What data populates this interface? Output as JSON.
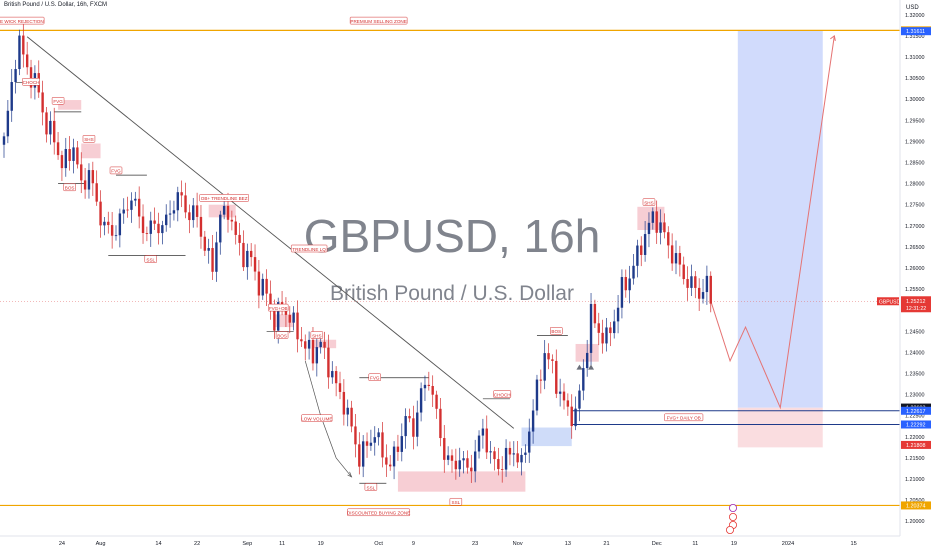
{
  "header": {
    "symbol_title": "British Pound / U.S. Dollar, 16h, FXCM"
  },
  "watermark": {
    "title": "GBPUSD, 16h",
    "subtitle": "British Pound / U.S. Dollar"
  },
  "price_axis": {
    "currency": "USD",
    "ticks": [
      "1.32000",
      "1.31500",
      "1.31000",
      "1.30500",
      "1.30000",
      "1.29500",
      "1.29000",
      "1.28500",
      "1.28000",
      "1.27500",
      "1.27000",
      "1.26500",
      "1.26000",
      "1.25500",
      "1.25000",
      "1.24500",
      "1.24000",
      "1.23500",
      "1.23000",
      "1.22500",
      "1.22000",
      "1.21500",
      "1.21000",
      "1.20500",
      "1.20000"
    ],
    "tags": [
      {
        "label": "1.31631",
        "value": 1.31631,
        "color": "#f0a500"
      },
      {
        "label": "1.31611",
        "value": 1.31611,
        "color": "#2962ff"
      },
      {
        "label": "1.22693",
        "value": 1.22693,
        "color": "#131722"
      },
      {
        "label": "1.22617",
        "value": 1.22617,
        "color": "#2962ff"
      },
      {
        "label": "1.22292",
        "value": 1.22292,
        "color": "#2962ff"
      },
      {
        "label": "1.21808",
        "value": 1.21808,
        "color": "#e53935"
      },
      {
        "label": "1.20374",
        "value": 1.20374,
        "color": "#f0a500"
      }
    ],
    "current": {
      "symbol": "GBPUSD",
      "price": "1.25212",
      "countdown": "12:31:22",
      "value": 1.25212,
      "color": "#e53935"
    }
  },
  "time_axis": {
    "ticks": [
      {
        "label": "24",
        "i": 15
      },
      {
        "label": "Aug",
        "i": 25
      },
      {
        "label": "14",
        "i": 40
      },
      {
        "label": "22",
        "i": 50
      },
      {
        "label": "Sep",
        "i": 63
      },
      {
        "label": "11",
        "i": 72
      },
      {
        "label": "19",
        "i": 82
      },
      {
        "label": "Oct",
        "i": 97
      },
      {
        "label": "9",
        "i": 106
      },
      {
        "label": "23",
        "i": 122
      },
      {
        "label": "Nov",
        "i": 133
      },
      {
        "label": "13",
        "i": 146
      },
      {
        "label": "21",
        "i": 156
      },
      {
        "label": "Dec",
        "i": 169
      },
      {
        "label": "11",
        "i": 179
      },
      {
        "label": "19",
        "i": 189
      },
      {
        "label": "2024",
        "i": 203
      },
      {
        "label": "15",
        "i": 220
      }
    ]
  },
  "chart_data": {
    "type": "candlestick",
    "title": "GBPUSD, 16h",
    "subtitle": "British Pound / U.S. Dollar",
    "ylim": [
      1.1965,
      1.3235
    ],
    "x_index_range": [
      0,
      232
    ],
    "candle_count": 184,
    "bull_color": "#1e3a8a",
    "bear_color": "#d32f2f",
    "close_anchors": [
      [
        0,
        1.29
      ],
      [
        3,
        1.31
      ],
      [
        4,
        1.313
      ],
      [
        7,
        1.305
      ],
      [
        9,
        1.302
      ],
      [
        11,
        1.293
      ],
      [
        13,
        1.291
      ],
      [
        15,
        1.284
      ],
      [
        18,
        1.289
      ],
      [
        20,
        1.279
      ],
      [
        22,
        1.283
      ],
      [
        24,
        1.275
      ],
      [
        26,
        1.27
      ],
      [
        28,
        1.268
      ],
      [
        31,
        1.273
      ],
      [
        33,
        1.277
      ],
      [
        35,
        1.272
      ],
      [
        37,
        1.268
      ],
      [
        39,
        1.271
      ],
      [
        41,
        1.269
      ],
      [
        43,
        1.274
      ],
      [
        46,
        1.277
      ],
      [
        48,
        1.272
      ],
      [
        50,
        1.273
      ],
      [
        52,
        1.264
      ],
      [
        54,
        1.261
      ],
      [
        56,
        1.272
      ],
      [
        58,
        1.274
      ],
      [
        60,
        1.267
      ],
      [
        62,
        1.263
      ],
      [
        64,
        1.262
      ],
      [
        66,
        1.256
      ],
      [
        68,
        1.254
      ],
      [
        70,
        1.247
      ],
      [
        72,
        1.251
      ],
      [
        74,
        1.248
      ],
      [
        76,
        1.245
      ],
      [
        78,
        1.241
      ],
      [
        80,
        1.24
      ],
      [
        82,
        1.242
      ],
      [
        84,
        1.237
      ],
      [
        86,
        1.232
      ],
      [
        88,
        1.228
      ],
      [
        90,
        1.222
      ],
      [
        92,
        1.215
      ],
      [
        94,
        1.218
      ],
      [
        96,
        1.221
      ],
      [
        98,
        1.216
      ],
      [
        100,
        1.213
      ],
      [
        102,
        1.218
      ],
      [
        104,
        1.224
      ],
      [
        106,
        1.222
      ],
      [
        108,
        1.23
      ],
      [
        110,
        1.234
      ],
      [
        112,
        1.225
      ],
      [
        114,
        1.216
      ],
      [
        116,
        1.213
      ],
      [
        118,
        1.215
      ],
      [
        120,
        1.212
      ],
      [
        122,
        1.216
      ],
      [
        124,
        1.222
      ],
      [
        126,
        1.215
      ],
      [
        128,
        1.213
      ],
      [
        130,
        1.215
      ],
      [
        132,
        1.217
      ],
      [
        134,
        1.213
      ],
      [
        136,
        1.222
      ],
      [
        138,
        1.231
      ],
      [
        140,
        1.24
      ],
      [
        142,
        1.236
      ],
      [
        144,
        1.23
      ],
      [
        146,
        1.226
      ],
      [
        148,
        1.225
      ],
      [
        150,
        1.236
      ],
      [
        152,
        1.249
      ],
      [
        154,
        1.245
      ],
      [
        156,
        1.243
      ],
      [
        158,
        1.248
      ],
      [
        160,
        1.255
      ],
      [
        162,
        1.258
      ],
      [
        164,
        1.263
      ],
      [
        166,
        1.268
      ],
      [
        168,
        1.272
      ],
      [
        170,
        1.27
      ],
      [
        172,
        1.265
      ],
      [
        174,
        1.262
      ],
      [
        176,
        1.258
      ],
      [
        178,
        1.256
      ],
      [
        180,
        1.254
      ],
      [
        182,
        1.256
      ],
      [
        183,
        1.252
      ]
    ],
    "lines": [
      {
        "name": "premium-line",
        "y": 1.31631,
        "color": "#f0a500",
        "width": 1.2
      },
      {
        "name": "discount-line",
        "y": 1.20374,
        "color": "#f0a500",
        "width": 1.2
      },
      {
        "name": "ob-upper-line",
        "y": 1.22617,
        "color": "#1e3a8a",
        "x1": 147,
        "width": 1
      },
      {
        "name": "ob-lower-line",
        "y": 1.22292,
        "color": "#1e3a8a",
        "x1": 147,
        "width": 1
      },
      {
        "name": "current-price-line",
        "y": 1.25212,
        "color": "#e57373",
        "dotted": true,
        "width": 0.6
      }
    ],
    "trendline": {
      "x1": 6,
      "y1": 1.3148,
      "x2": 132,
      "y2": 1.222,
      "color": "#555555"
    },
    "zones": [
      {
        "name": "projection-zone",
        "x1": 190,
        "x2": 212,
        "y1": 1.2269,
        "y2": 1.31631,
        "color": "#c9d5fb"
      },
      {
        "name": "ob-zone",
        "x1": 190,
        "x2": 212,
        "y1": 1.2175,
        "y2": 1.2269,
        "color": "#f9d7da"
      },
      {
        "name": "ssl-zone",
        "x1": 102,
        "x2": 135,
        "y1": 1.207,
        "y2": 1.2118,
        "color": "#f6c6cc"
      },
      {
        "name": "fvg-blue-zone",
        "x1": 134,
        "x2": 147,
        "y1": 1.2178,
        "y2": 1.2222,
        "color": "#c7d6f8"
      },
      {
        "name": "bos-red-zone",
        "x1": 148,
        "x2": 154,
        "y1": 1.2378,
        "y2": 1.242,
        "color": "#f6c6cc"
      },
      {
        "name": "fvg-top-zone",
        "x1": 14,
        "x2": 20,
        "y1": 1.2975,
        "y2": 1.2998,
        "color": "#f6c6cc"
      },
      {
        "name": "shs-zone-1",
        "x1": 20,
        "x2": 25,
        "y1": 1.286,
        "y2": 1.2895,
        "color": "#f6c6cc"
      },
      {
        "name": "ob-trendline-zone",
        "x1": 53,
        "x2": 60,
        "y1": 1.272,
        "y2": 1.275,
        "color": "#f6c6cc"
      },
      {
        "name": "fvg-ob-zone",
        "x1": 70,
        "x2": 75,
        "y1": 1.246,
        "y2": 1.249,
        "color": "#f6c6cc"
      },
      {
        "name": "shs-zone-2",
        "x1": 80,
        "x2": 86,
        "y1": 1.241,
        "y2": 1.243,
        "color": "#f6c6cc"
      },
      {
        "name": "shs-zone-3",
        "x1": 164,
        "x2": 171,
        "y1": 1.269,
        "y2": 1.2745,
        "color": "#f6c6cc"
      }
    ],
    "levels": [
      {
        "name": "choch-level-1",
        "x1": 3,
        "x2": 9,
        "y": 1.304
      },
      {
        "name": "fvg-level-1",
        "x1": 13,
        "x2": 20,
        "y": 1.297
      },
      {
        "name": "bos-level-1",
        "x1": 14,
        "x2": 21,
        "y": 1.28
      },
      {
        "name": "fvg-level-2",
        "x1": 29,
        "x2": 37,
        "y": 1.282
      },
      {
        "name": "ssl-level-1",
        "x1": 27,
        "x2": 47,
        "y": 1.263
      },
      {
        "name": "bos-level-2",
        "x1": 68,
        "x2": 75,
        "y": 1.245
      },
      {
        "name": "fvg-level-3",
        "x1": 92,
        "x2": 110,
        "y": 1.234
      },
      {
        "name": "ssl-level-2",
        "x1": 92,
        "x2": 99,
        "y": 1.209
      },
      {
        "name": "choch-level-2",
        "x1": 124,
        "x2": 131,
        "y": 1.229
      },
      {
        "name": "bos-level-3",
        "x1": 138,
        "x2": 146,
        "y": 1.244
      }
    ],
    "projection": {
      "color": "#e57373",
      "points": [
        [
          183,
          1.2522
        ],
        [
          188,
          1.238
        ],
        [
          192,
          1.246
        ],
        [
          201,
          1.2269
        ],
        [
          215,
          1.315
        ]
      ]
    },
    "curved_arrow": {
      "points": [
        [
          78,
          1.238
        ],
        [
          82,
          1.225
        ],
        [
          86,
          1.215
        ],
        [
          90,
          1.2105
        ]
      ],
      "color": "#555555"
    },
    "triangles": [
      {
        "i": 149,
        "y": 1.2365
      },
      {
        "i": 152,
        "y": 1.2365
      }
    ],
    "annotations": [
      {
        "text": "THREE WICK REJECTION",
        "i": 3,
        "y": 1.3185,
        "color": "#d32f2f"
      },
      {
        "text": "PREMIUM SELLING ZONE",
        "i": 97,
        "y": 1.3185,
        "color": "#d32f2f"
      },
      {
        "text": "CHOCH",
        "i": 7,
        "y": 1.304,
        "color": "#d32f2f"
      },
      {
        "text": "FVG",
        "i": 14,
        "y": 1.2995,
        "color": "#d32f2f"
      },
      {
        "text": "SHS",
        "i": 22,
        "y": 1.2905,
        "color": "#d32f2f"
      },
      {
        "text": "BOS",
        "i": 17,
        "y": 1.279,
        "color": "#d32f2f"
      },
      {
        "text": "FVG",
        "i": 29,
        "y": 1.283,
        "color": "#d32f2f"
      },
      {
        "text": "OB+ TRENDLINE BEZ",
        "i": 57,
        "y": 1.2765,
        "color": "#d32f2f"
      },
      {
        "text": "SSL",
        "i": 38,
        "y": 1.262,
        "color": "#d32f2f"
      },
      {
        "text": "TRENDLINE LQ",
        "i": 79,
        "y": 1.2645,
        "color": "#d32f2f"
      },
      {
        "text": "FVG+OB",
        "i": 71,
        "y": 1.2505,
        "color": "#d32f2f"
      },
      {
        "text": "SHS",
        "i": 81,
        "y": 1.244,
        "color": "#d32f2f"
      },
      {
        "text": "BOS",
        "i": 72,
        "y": 1.244,
        "color": "#d32f2f"
      },
      {
        "text": "FVG",
        "i": 96,
        "y": 1.234,
        "color": "#d32f2f"
      },
      {
        "text": "LOW VOLUME",
        "i": 81,
        "y": 1.2243,
        "color": "#d32f2f"
      },
      {
        "text": "SSL",
        "i": 95,
        "y": 1.208,
        "color": "#d32f2f"
      },
      {
        "text": "SSL",
        "i": 117,
        "y": 1.2045,
        "color": "#d32f2f"
      },
      {
        "text": "CHOCH",
        "i": 129,
        "y": 1.23,
        "color": "#d32f2f"
      },
      {
        "text": "BOS",
        "i": 143,
        "y": 1.245,
        "color": "#d32f2f"
      },
      {
        "text": "SHS",
        "i": 167,
        "y": 1.2755,
        "color": "#d32f2f"
      },
      {
        "text": "FVG+ DAILY OB",
        "i": 176,
        "y": 1.2245,
        "color": "#d32f2f"
      },
      {
        "text": "DISCOUNTED BUYING ZONE",
        "i": 97,
        "y": 1.202,
        "color": "#d32f2f"
      }
    ]
  }
}
